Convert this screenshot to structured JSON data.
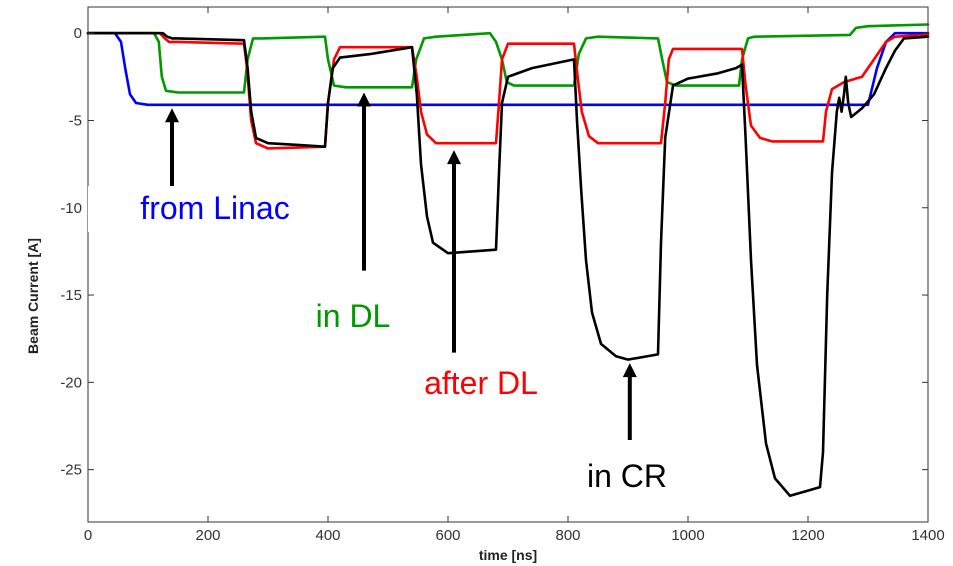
{
  "chart_data": {
    "type": "line",
    "title": "",
    "xlabel": "time [ns]",
    "ylabel": "Beam Current [A]",
    "xlim": [
      0,
      1400
    ],
    "ylim": [
      -28,
      1.5
    ],
    "grid": false,
    "x_ticks": [
      "0",
      "200",
      "400",
      "600",
      "800",
      "1000",
      "1200",
      "1400"
    ],
    "y_ticks": [
      "0",
      "-5",
      "-10",
      "-15",
      "-20",
      "-25"
    ],
    "series": [
      {
        "name": "from Linac",
        "color": "#0000ff",
        "points": [
          [
            0,
            0
          ],
          [
            45,
            0
          ],
          [
            55,
            -0.5
          ],
          [
            62,
            -2
          ],
          [
            70,
            -3.5
          ],
          [
            80,
            -4
          ],
          [
            100,
            -4.1
          ],
          [
            1300,
            -4.1
          ],
          [
            1315,
            -2
          ],
          [
            1330,
            -0.5
          ],
          [
            1345,
            0
          ],
          [
            1400,
            0
          ]
        ]
      },
      {
        "name": "in DL",
        "color": "#009900",
        "points": [
          [
            0,
            0
          ],
          [
            110,
            0
          ],
          [
            118,
            -0.5
          ],
          [
            123,
            -2.5
          ],
          [
            130,
            -3.3
          ],
          [
            150,
            -3.4
          ],
          [
            260,
            -3.4
          ],
          [
            266,
            -1.5
          ],
          [
            275,
            -0.3
          ],
          [
            290,
            -0.3
          ],
          [
            395,
            -0.2
          ],
          [
            400,
            -1.5
          ],
          [
            410,
            -3
          ],
          [
            430,
            -3.1
          ],
          [
            540,
            -3.1
          ],
          [
            547,
            -1.5
          ],
          [
            560,
            -0.3
          ],
          [
            580,
            -0.2
          ],
          [
            670,
            0
          ],
          [
            680,
            -0.5
          ],
          [
            690,
            -1.5
          ],
          [
            698,
            -2.8
          ],
          [
            710,
            -3
          ],
          [
            810,
            -3
          ],
          [
            818,
            -1.2
          ],
          [
            830,
            -0.3
          ],
          [
            850,
            -0.2
          ],
          [
            950,
            -0.3
          ],
          [
            957,
            -1.5
          ],
          [
            965,
            -2.8
          ],
          [
            980,
            -3
          ],
          [
            1085,
            -3
          ],
          [
            1090,
            -1.5
          ],
          [
            1100,
            -0.3
          ],
          [
            1110,
            -0.2
          ],
          [
            1270,
            -0.1
          ],
          [
            1280,
            0.3
          ],
          [
            1300,
            0.4
          ],
          [
            1400,
            0.5
          ]
        ]
      },
      {
        "name": "after DL",
        "color": "#ff0000",
        "points": [
          [
            0,
            0
          ],
          [
            120,
            0
          ],
          [
            128,
            -0.3
          ],
          [
            135,
            -0.5
          ],
          [
            150,
            -0.5
          ],
          [
            260,
            -0.6
          ],
          [
            265,
            -2
          ],
          [
            272,
            -5
          ],
          [
            280,
            -6.3
          ],
          [
            300,
            -6.6
          ],
          [
            395,
            -6.5
          ],
          [
            400,
            -4
          ],
          [
            410,
            -1.5
          ],
          [
            420,
            -0.8
          ],
          [
            540,
            -0.8
          ],
          [
            548,
            -2.5
          ],
          [
            555,
            -4.5
          ],
          [
            565,
            -5.8
          ],
          [
            580,
            -6.3
          ],
          [
            680,
            -6.3
          ],
          [
            685,
            -4
          ],
          [
            690,
            -1.5
          ],
          [
            700,
            -0.6
          ],
          [
            810,
            -0.6
          ],
          [
            816,
            -2.5
          ],
          [
            823,
            -4.5
          ],
          [
            835,
            -5.9
          ],
          [
            850,
            -6.3
          ],
          [
            955,
            -6.3
          ],
          [
            962,
            -4
          ],
          [
            968,
            -1.5
          ],
          [
            975,
            -0.9
          ],
          [
            1090,
            -0.9
          ],
          [
            1096,
            -3
          ],
          [
            1105,
            -5.3
          ],
          [
            1120,
            -6
          ],
          [
            1140,
            -6.2
          ],
          [
            1225,
            -6.2
          ],
          [
            1230,
            -4.5
          ],
          [
            1240,
            -3.2
          ],
          [
            1260,
            -2.8
          ],
          [
            1290,
            -2.5
          ],
          [
            1310,
            -1.5
          ],
          [
            1330,
            -0.5
          ],
          [
            1345,
            -0.2
          ],
          [
            1400,
            -0.1
          ]
        ]
      },
      {
        "name": "in CR",
        "color": "#000000",
        "points": [
          [
            0,
            0
          ],
          [
            125,
            0
          ],
          [
            132,
            -0.2
          ],
          [
            140,
            -0.3
          ],
          [
            150,
            -0.3
          ],
          [
            260,
            -0.4
          ],
          [
            266,
            -2
          ],
          [
            272,
            -4.5
          ],
          [
            280,
            -6
          ],
          [
            300,
            -6.3
          ],
          [
            350,
            -6.4
          ],
          [
            395,
            -6.5
          ],
          [
            400,
            -4
          ],
          [
            408,
            -2
          ],
          [
            420,
            -1.4
          ],
          [
            470,
            -1.2
          ],
          [
            540,
            -0.8
          ],
          [
            548,
            -3.5
          ],
          [
            555,
            -7.5
          ],
          [
            565,
            -10.5
          ],
          [
            575,
            -12
          ],
          [
            600,
            -12.6
          ],
          [
            640,
            -12.5
          ],
          [
            680,
            -12.4
          ],
          [
            685,
            -8
          ],
          [
            690,
            -4
          ],
          [
            700,
            -2.5
          ],
          [
            740,
            -2
          ],
          [
            810,
            -1.5
          ],
          [
            815,
            -5
          ],
          [
            822,
            -9
          ],
          [
            830,
            -13
          ],
          [
            840,
            -16
          ],
          [
            855,
            -17.8
          ],
          [
            880,
            -18.5
          ],
          [
            900,
            -18.7
          ],
          [
            950,
            -18.4
          ],
          [
            955,
            -12
          ],
          [
            962,
            -6
          ],
          [
            975,
            -3
          ],
          [
            1000,
            -2.6
          ],
          [
            1050,
            -2.3
          ],
          [
            1080,
            -2
          ],
          [
            1090,
            -1.8
          ],
          [
            1096,
            -6
          ],
          [
            1105,
            -13
          ],
          [
            1115,
            -19
          ],
          [
            1130,
            -23.5
          ],
          [
            1145,
            -25.5
          ],
          [
            1170,
            -26.5
          ],
          [
            1200,
            -26.2
          ],
          [
            1220,
            -26
          ],
          [
            1225,
            -24
          ],
          [
            1232,
            -15
          ],
          [
            1240,
            -8
          ],
          [
            1248,
            -4.5
          ],
          [
            1252,
            -3.7
          ],
          [
            1256,
            -4.5
          ],
          [
            1260,
            -3.5
          ],
          [
            1263,
            -2.5
          ],
          [
            1267,
            -4
          ],
          [
            1272,
            -4.8
          ],
          [
            1290,
            -4.3
          ],
          [
            1310,
            -3.5
          ],
          [
            1330,
            -2
          ],
          [
            1345,
            -1
          ],
          [
            1360,
            -0.3
          ],
          [
            1400,
            -0.2
          ]
        ]
      }
    ],
    "annotations": [
      {
        "text": "from Linac",
        "color": "#0000ff",
        "arrow_from": [
          140,
          -10.7
        ],
        "arrow_to": [
          140,
          -4.3
        ]
      },
      {
        "text": "in DL",
        "color": "#009900",
        "arrow_from": [
          460,
          -13.6
        ],
        "arrow_to": [
          460,
          -3.4
        ]
      },
      {
        "text": "after DL",
        "color": "#ff0000",
        "arrow_from": [
          610,
          -18.3
        ],
        "arrow_to": [
          610,
          -6.7
        ]
      },
      {
        "text": "in CR",
        "color": "#000000",
        "arrow_from": [
          903,
          -23.3
        ],
        "arrow_to": [
          903,
          -18.9
        ]
      }
    ]
  }
}
